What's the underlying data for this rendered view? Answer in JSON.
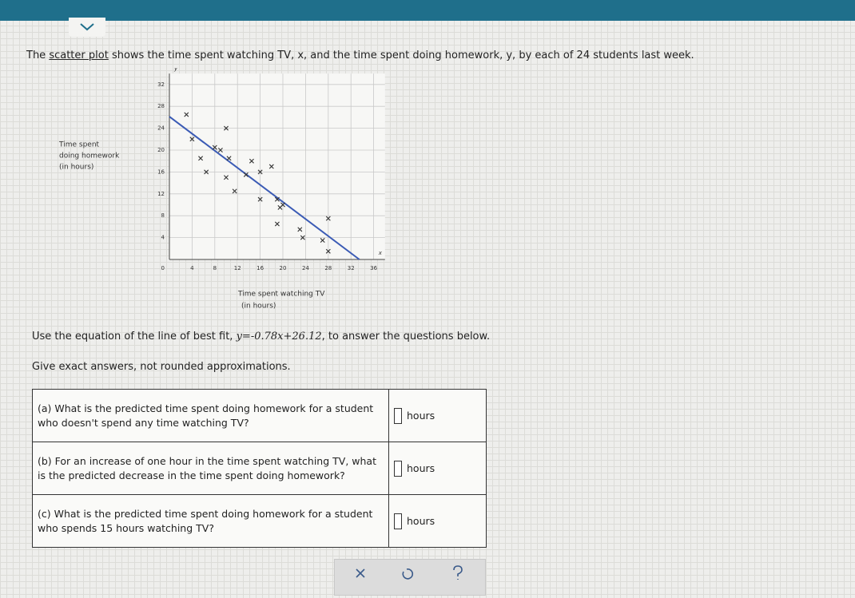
{
  "intro": {
    "before": "The",
    "link": "scatter plot",
    "after": "shows the time spent watching TV, x, and the time spent doing homework, y, by each of 24 students last week."
  },
  "plot": {
    "type": "scatter",
    "y_label": [
      "Time spent",
      "doing homework",
      "(in hours)"
    ],
    "x_label": [
      "Time spent watching TV",
      "(in hours)"
    ],
    "x_var": "x",
    "y_var": "y",
    "origin_label": "0",
    "xlim": [
      0,
      38
    ],
    "ylim": [
      0,
      34
    ],
    "xticks": [
      4,
      8,
      12,
      16,
      20,
      24,
      28,
      32,
      36
    ],
    "yticks": [
      4,
      8,
      12,
      16,
      20,
      24,
      28,
      32
    ],
    "x": [
      3,
      10,
      4,
      8,
      9,
      5.5,
      10.5,
      14.5,
      18,
      16,
      6.5,
      10,
      13.5,
      11.5,
      16,
      19,
      20,
      19.5,
      19,
      23,
      28,
      23.5,
      27,
      28
    ],
    "y": [
      26.5,
      24,
      22,
      20.5,
      20,
      18.5,
      18.5,
      18,
      17,
      16,
      16,
      15,
      15.5,
      12.5,
      11,
      11,
      10,
      9.5,
      6.5,
      5.5,
      7.5,
      4,
      3.5,
      1.5
    ],
    "color": "#333333",
    "line_color": "#3b5bb5"
  },
  "instruction": {
    "before": "Use the equation of the line of best fit,",
    "lhs": "y=",
    "slope": -0.78,
    "mid": "x+",
    "intercept": 26.12,
    "after": ", to answer the questions below."
  },
  "note": "Give exact answers, not rounded approximations.",
  "table": {
    "rows": [
      {
        "question": "(a) What is the predicted time spent doing homework for a student who doesn't spend any time watching TV?",
        "unit": "hours"
      },
      {
        "question": "(b) For an increase of one hour in the time spent watching TV, what is the predicted decrease in the time spent doing homework?",
        "unit": "hours"
      },
      {
        "question": "(c) What is the predicted time spent doing homework for a student who spends 15 hours watching TV?",
        "unit": "hours"
      }
    ]
  }
}
